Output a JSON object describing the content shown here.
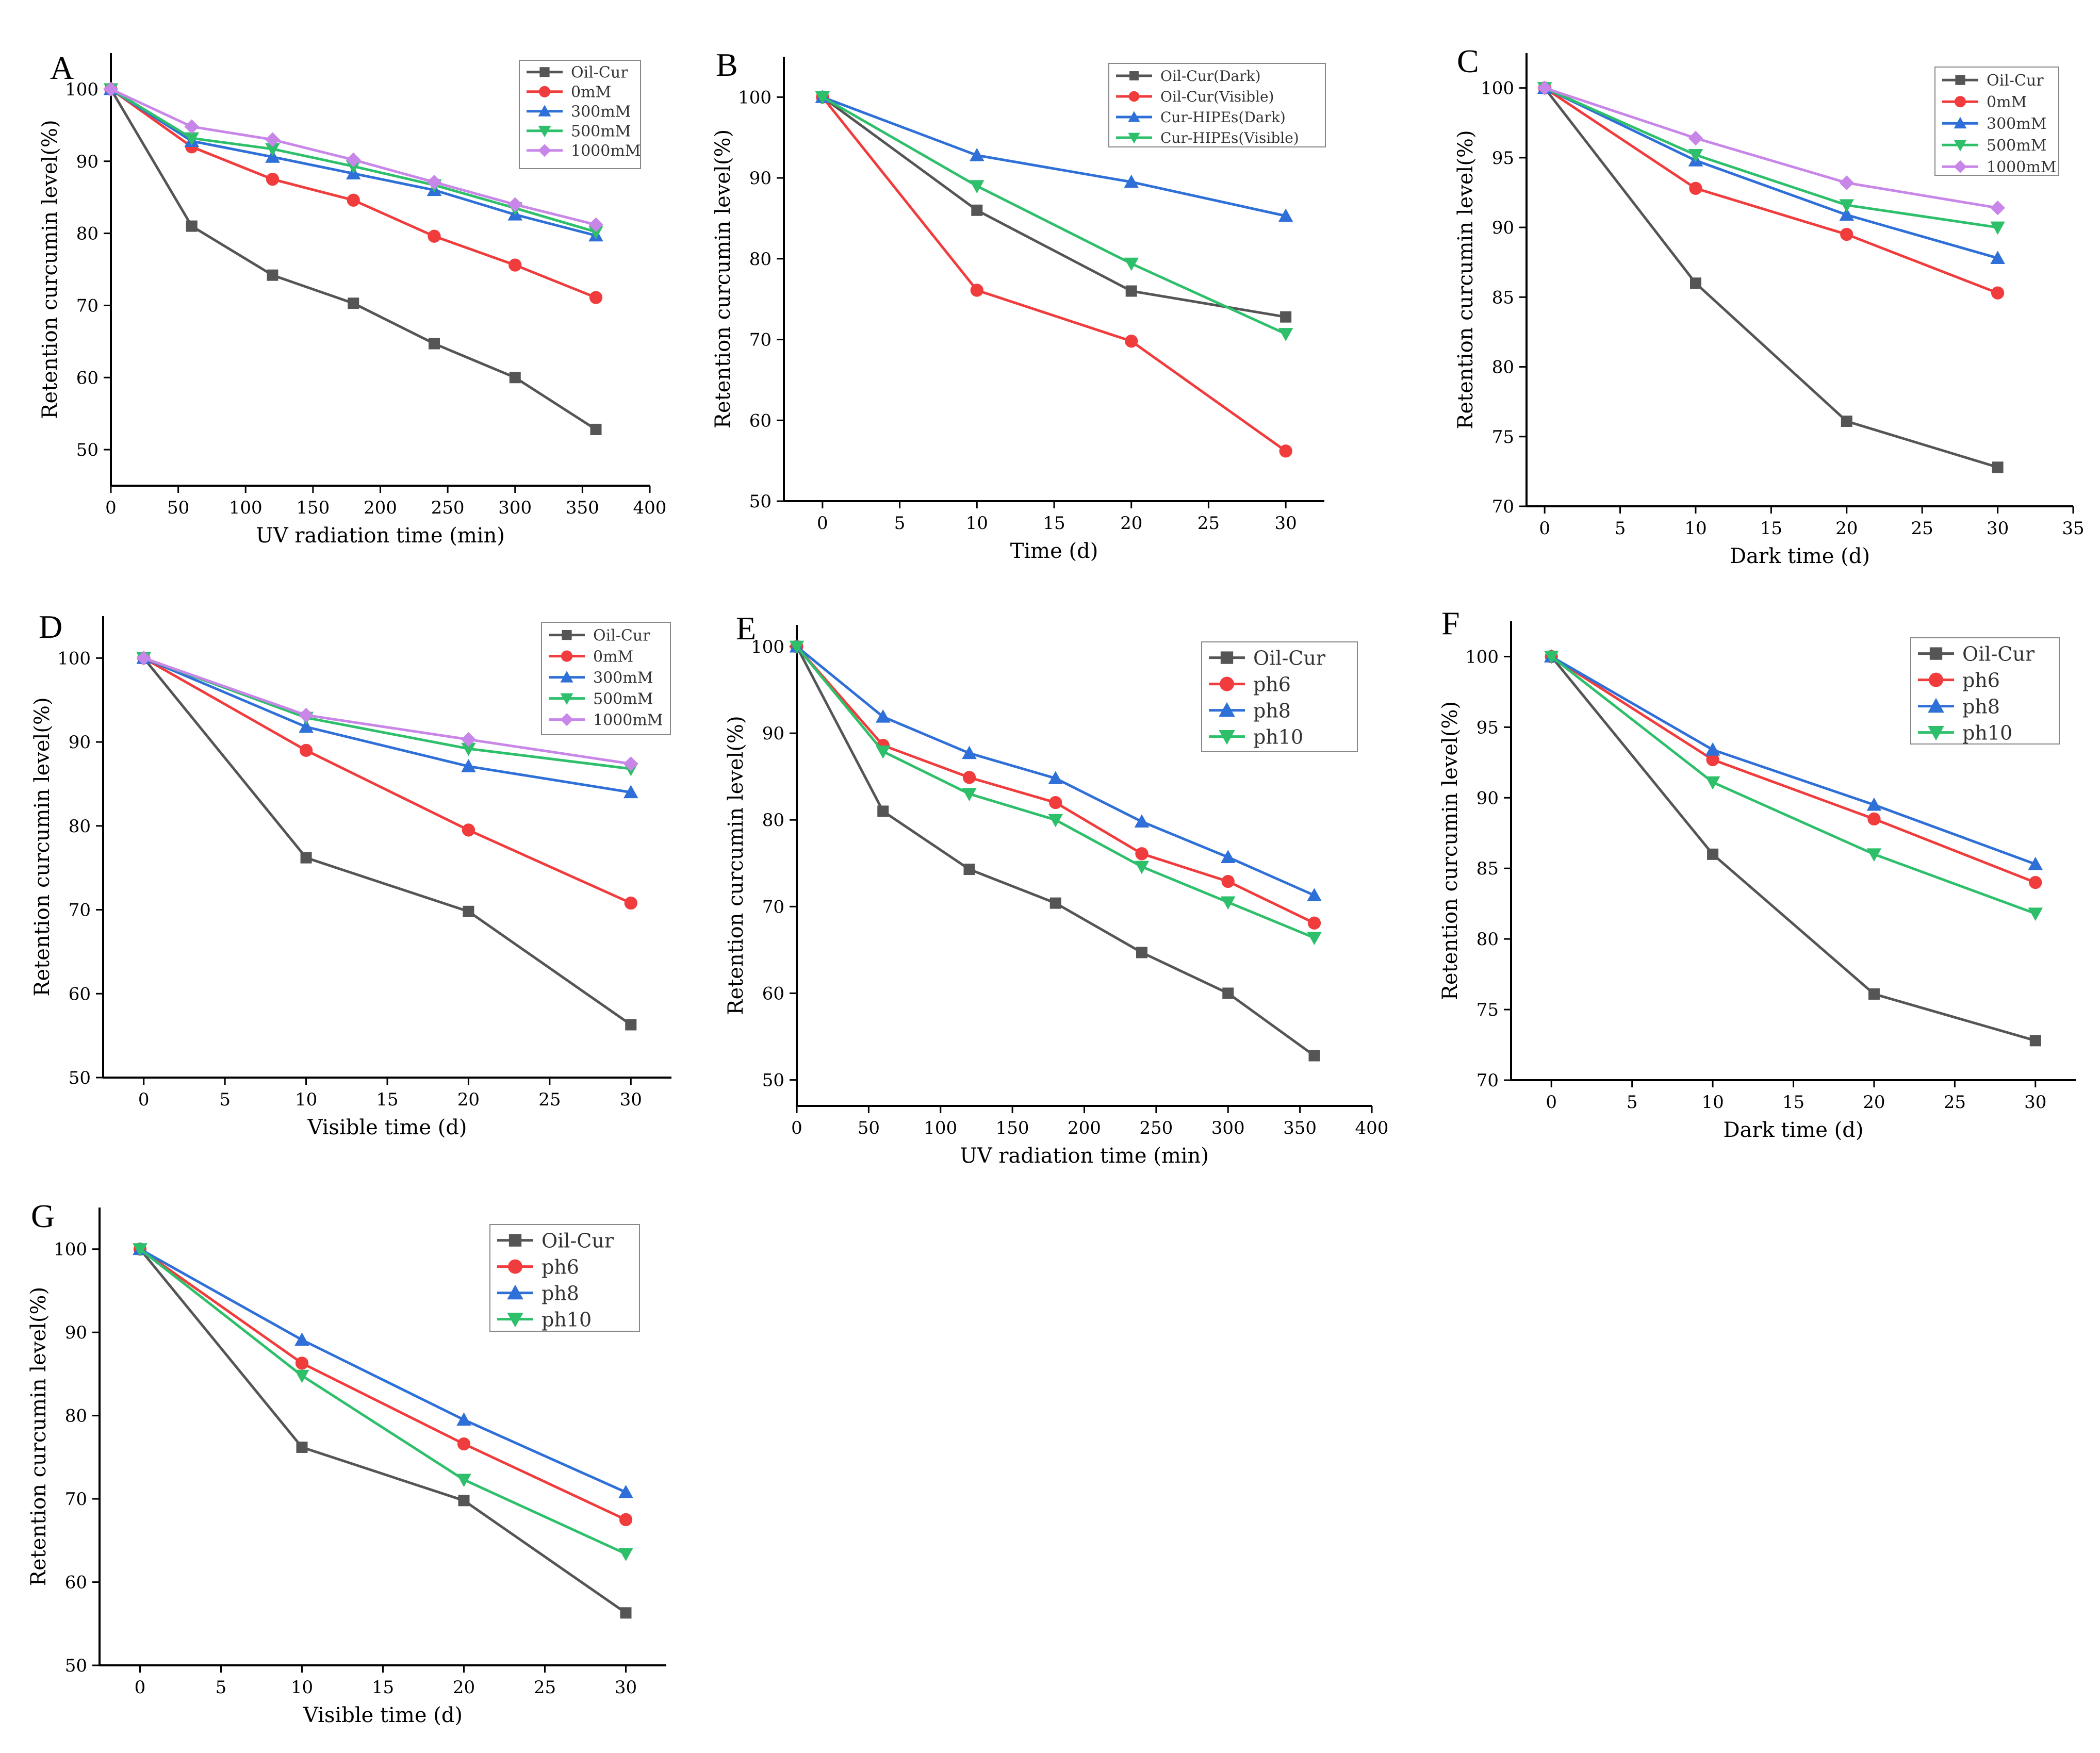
{
  "chart_data": [
    {
      "id": "A",
      "type": "line",
      "title": "A",
      "xlabel": "UV radiation time (min)",
      "ylabel": "Retention curcumin level(%)",
      "xlim": [
        0,
        400
      ],
      "ylim": [
        45,
        105
      ],
      "xticks": [
        0,
        50,
        100,
        150,
        200,
        250,
        300,
        350,
        400
      ],
      "yticks": [
        50,
        60,
        70,
        80,
        90,
        100
      ],
      "x": [
        0,
        60,
        120,
        180,
        240,
        300,
        360
      ],
      "legend_position": "top-right",
      "series": [
        {
          "name": "Oil-Cur",
          "color": "#555555",
          "marker": "square",
          "values": [
            100,
            81,
            74.2,
            70.3,
            64.7,
            60,
            52.8
          ]
        },
        {
          "name": "0mM",
          "color": "#f03c3c",
          "marker": "circle",
          "values": [
            100,
            92,
            87.5,
            84.6,
            79.6,
            75.6,
            71.1
          ]
        },
        {
          "name": "300mM",
          "color": "#2e6fd8",
          "marker": "triangle-up",
          "values": [
            100,
            92.8,
            90.6,
            88.3,
            86,
            82.6,
            79.7
          ]
        },
        {
          "name": "500mM",
          "color": "#2ebf6b",
          "marker": "triangle-down",
          "values": [
            100,
            93.2,
            91.7,
            89.3,
            86.7,
            83.5,
            80.2
          ]
        },
        {
          "name": "1000mM",
          "color": "#c886e8",
          "marker": "diamond",
          "values": [
            100,
            94.8,
            93,
            90.2,
            87.1,
            84,
            81.2
          ]
        }
      ]
    },
    {
      "id": "B",
      "type": "line",
      "title": "B",
      "xlabel": "Time (d)",
      "ylabel": "Retention curcumin level(%)",
      "xlim": [
        -2.5,
        32.5
      ],
      "ylim": [
        50,
        105
      ],
      "xticks": [
        0,
        5,
        10,
        15,
        20,
        25,
        30
      ],
      "yticks": [
        50,
        60,
        70,
        80,
        90,
        100
      ],
      "x": [
        0,
        10,
        20,
        30
      ],
      "legend_position": "top-right",
      "series": [
        {
          "name": "Oil-Cur(Dark)",
          "color": "#555555",
          "marker": "square",
          "values": [
            100,
            86,
            76,
            72.8
          ]
        },
        {
          "name": "Oil-Cur(Visible)",
          "color": "#f03c3c",
          "marker": "circle",
          "values": [
            100,
            76.1,
            69.8,
            56.2
          ]
        },
        {
          "name": "Cur-HIPEs(Dark)",
          "color": "#2e6fd8",
          "marker": "triangle-up",
          "values": [
            100,
            92.8,
            89.5,
            85.3
          ]
        },
        {
          "name": "Cur-HIPEs(Visible)",
          "color": "#2ebf6b",
          "marker": "triangle-down",
          "values": [
            100,
            89,
            79.4,
            70.7
          ]
        }
      ]
    },
    {
      "id": "C",
      "type": "line",
      "title": "C",
      "xlabel": "Dark time (d)",
      "ylabel": "Retention curcumin level(%)",
      "xlim": [
        -1.2,
        35
      ],
      "ylim": [
        70,
        102.5
      ],
      "xticks": [
        0,
        5,
        10,
        15,
        20,
        25,
        30,
        35
      ],
      "yticks": [
        70,
        75,
        80,
        85,
        90,
        95,
        100
      ],
      "x": [
        0,
        10,
        20,
        30
      ],
      "legend_position": "top-right",
      "series": [
        {
          "name": "Oil-Cur",
          "color": "#555555",
          "marker": "square",
          "values": [
            100,
            86,
            76.1,
            72.8
          ]
        },
        {
          "name": "0mM",
          "color": "#f03c3c",
          "marker": "circle",
          "values": [
            100,
            92.8,
            89.5,
            85.3
          ]
        },
        {
          "name": "300mM",
          "color": "#2e6fd8",
          "marker": "triangle-up",
          "values": [
            100,
            94.8,
            90.9,
            87.8
          ]
        },
        {
          "name": "500mM",
          "color": "#2ebf6b",
          "marker": "triangle-down",
          "values": [
            100,
            95.2,
            91.6,
            90
          ]
        },
        {
          "name": "1000mM",
          "color": "#c886e8",
          "marker": "diamond",
          "values": [
            100,
            96.4,
            93.2,
            91.4
          ]
        }
      ]
    },
    {
      "id": "D",
      "type": "line",
      "title": "D",
      "xlabel": "Visible time (d)",
      "ylabel": "Retention curcumin level(%)",
      "xlim": [
        -2.5,
        32.5
      ],
      "ylim": [
        50,
        105
      ],
      "xticks": [
        0,
        5,
        10,
        15,
        20,
        25,
        30
      ],
      "yticks": [
        50,
        60,
        70,
        80,
        90,
        100
      ],
      "x": [
        0,
        10,
        20,
        30
      ],
      "legend_position": "top-right",
      "series": [
        {
          "name": "Oil-Cur",
          "color": "#555555",
          "marker": "square",
          "values": [
            100,
            76.2,
            69.8,
            56.3
          ]
        },
        {
          "name": "0mM",
          "color": "#f03c3c",
          "marker": "circle",
          "values": [
            100,
            89,
            79.5,
            70.8
          ]
        },
        {
          "name": "300mM",
          "color": "#2e6fd8",
          "marker": "triangle-up",
          "values": [
            100,
            91.8,
            87.1,
            84
          ]
        },
        {
          "name": "500mM",
          "color": "#2ebf6b",
          "marker": "triangle-down",
          "values": [
            100,
            92.9,
            89.2,
            86.8
          ]
        },
        {
          "name": "1000mM",
          "color": "#c886e8",
          "marker": "diamond",
          "values": [
            100,
            93.2,
            90.3,
            87.4
          ]
        }
      ]
    },
    {
      "id": "E",
      "type": "line",
      "title": "E",
      "xlabel": "UV radiation time (min)",
      "ylabel": "Retention curcumin level(%)",
      "xlim": [
        0,
        400
      ],
      "ylim": [
        47,
        102.5
      ],
      "xticks": [
        0,
        50,
        100,
        150,
        200,
        250,
        300,
        350,
        400
      ],
      "yticks": [
        50,
        60,
        70,
        80,
        90,
        100
      ],
      "x": [
        0,
        60,
        120,
        180,
        240,
        300,
        360
      ],
      "legend_position": "top-right",
      "series": [
        {
          "name": "Oil-Cur",
          "color": "#555555",
          "marker": "square",
          "values": [
            100,
            81,
            74.3,
            70.4,
            64.7,
            60,
            52.8
          ]
        },
        {
          "name": "ph6",
          "color": "#f03c3c",
          "marker": "circle",
          "values": [
            100,
            88.6,
            84.9,
            82,
            76.1,
            72.9,
            68.1
          ]
        },
        {
          "name": "ph8",
          "color": "#2e6fd8",
          "marker": "triangle-up",
          "values": [
            100,
            91.9,
            87.7,
            84.8,
            79.8,
            75.7,
            71.3
          ]
        },
        {
          "name": "ph10",
          "color": "#2ebf6b",
          "marker": "triangle-down",
          "values": [
            100,
            87.9,
            83,
            80,
            74.6,
            70.5,
            66.4
          ]
        }
      ]
    },
    {
      "id": "F",
      "type": "line",
      "title": "F",
      "xlabel": "Dark time (d)",
      "ylabel": "Retention curcumin level(%)",
      "xlim": [
        -2.5,
        32.5
      ],
      "ylim": [
        70,
        102.5
      ],
      "xticks": [
        0,
        5,
        10,
        15,
        20,
        25,
        30
      ],
      "yticks": [
        70,
        75,
        80,
        85,
        90,
        95,
        100
      ],
      "x": [
        0,
        10,
        20,
        30
      ],
      "legend_position": "top-right",
      "series": [
        {
          "name": "Oil-Cur",
          "color": "#555555",
          "marker": "square",
          "values": [
            100,
            86,
            76.1,
            72.8
          ]
        },
        {
          "name": "ph6",
          "color": "#f03c3c",
          "marker": "circle",
          "values": [
            100,
            92.7,
            88.5,
            84
          ]
        },
        {
          "name": "ph8",
          "color": "#2e6fd8",
          "marker": "triangle-up",
          "values": [
            100,
            93.4,
            89.5,
            85.3
          ]
        },
        {
          "name": "ph10",
          "color": "#2ebf6b",
          "marker": "triangle-down",
          "values": [
            100,
            91.1,
            86,
            81.8
          ]
        }
      ]
    },
    {
      "id": "G",
      "type": "line",
      "title": "G",
      "xlabel": "Visible time (d)",
      "ylabel": "Retention curcumin level(%)",
      "xlim": [
        -2.5,
        32.5
      ],
      "ylim": [
        50,
        105
      ],
      "xticks": [
        0,
        5,
        10,
        15,
        20,
        25,
        30
      ],
      "yticks": [
        50,
        60,
        70,
        80,
        90,
        100
      ],
      "x": [
        0,
        10,
        20,
        30
      ],
      "legend_position": "top-right",
      "series": [
        {
          "name": "Oil-Cur",
          "color": "#555555",
          "marker": "square",
          "values": [
            100,
            76.2,
            69.8,
            56.3
          ]
        },
        {
          "name": "ph6",
          "color": "#f03c3c",
          "marker": "circle",
          "values": [
            100,
            86.3,
            76.6,
            67.5
          ]
        },
        {
          "name": "ph8",
          "color": "#2e6fd8",
          "marker": "triangle-up",
          "values": [
            100,
            89.1,
            79.5,
            70.8
          ]
        },
        {
          "name": "ph10",
          "color": "#2ebf6b",
          "marker": "triangle-down",
          "values": [
            100,
            84.8,
            72.3,
            63.4
          ]
        }
      ]
    }
  ]
}
